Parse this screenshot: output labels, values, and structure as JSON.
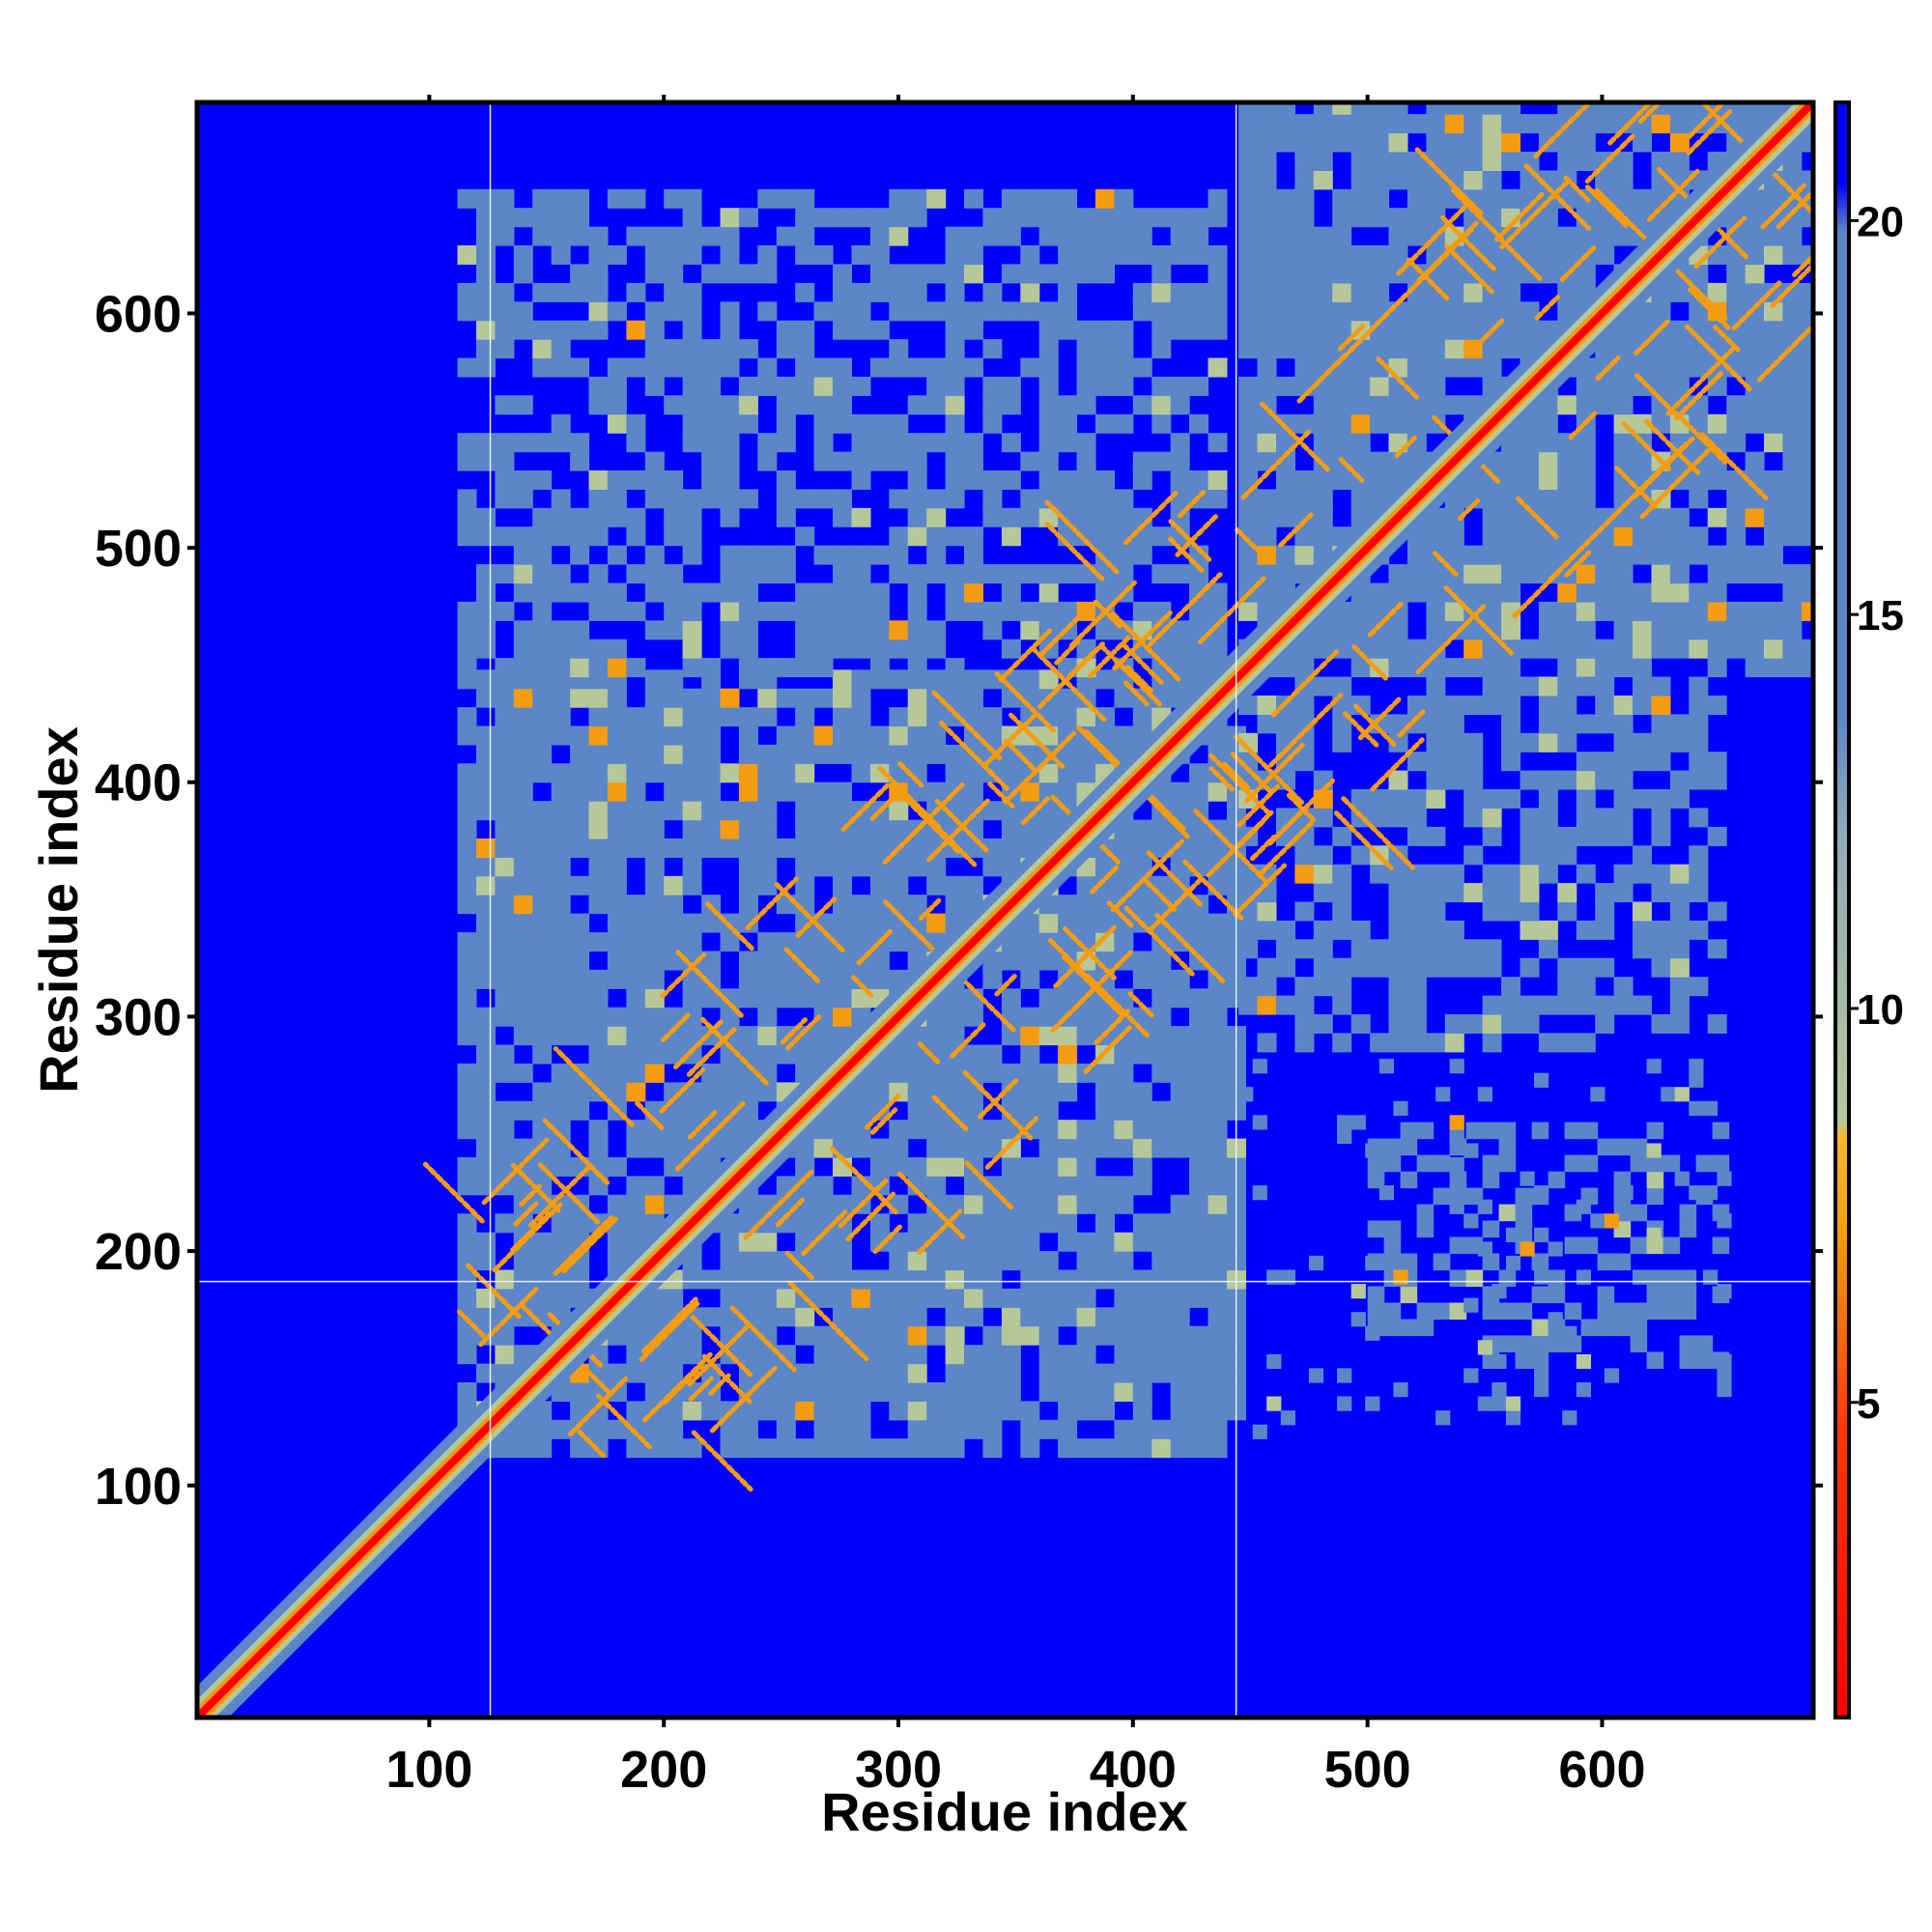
{
  "chart_data": {
    "type": "heatmap",
    "description_kind": "residue distance map",
    "title": "",
    "xlabel": "Residue index",
    "ylabel": "Residue index",
    "xlim": [
      1,
      690
    ],
    "ylim": [
      1,
      690
    ],
    "x_ticks": [
      100,
      200,
      300,
      400,
      500,
      600
    ],
    "y_ticks": [
      100,
      200,
      300,
      400,
      500,
      600
    ],
    "x_tick_labels": [
      "100",
      "200",
      "300",
      "400",
      "500",
      "600"
    ],
    "y_tick_labels": [
      "100",
      "200",
      "300",
      "400",
      "500",
      "600"
    ],
    "colorbar": {
      "ticks": [
        5,
        10,
        15,
        20
      ],
      "tick_labels": [
        "5",
        "10",
        "15",
        "20"
      ],
      "range": [
        1,
        21.5
      ]
    },
    "colors": {
      "background": "#0000ff",
      "mid": "#5b86c8",
      "light": "#b6c79a",
      "near": "#f39c12",
      "diagonal": "#ff0000"
    },
    "domain_blocks": [
      {
        "x": [
          112,
          445
        ],
        "y": [
          112,
          445
        ],
        "density": "high"
      },
      {
        "x": [
          445,
          690
        ],
        "y": [
          445,
          690
        ],
        "density": "high"
      },
      {
        "x": [
          112,
          440
        ],
        "y": [
          445,
          650
        ],
        "density": "medium"
      },
      {
        "x": [
          445,
          650
        ],
        "y": [
          285,
          445
        ],
        "density": "medium"
      },
      {
        "x": [
          500,
          650
        ],
        "y": [
          150,
          250
        ],
        "density": "low"
      },
      {
        "x": [
          445,
          650
        ],
        "y": [
          120,
          280
        ],
        "density": "sparse"
      }
    ],
    "guide_lines": {
      "vertical": [
        126,
        444
      ],
      "horizontal": [
        187
      ]
    }
  }
}
